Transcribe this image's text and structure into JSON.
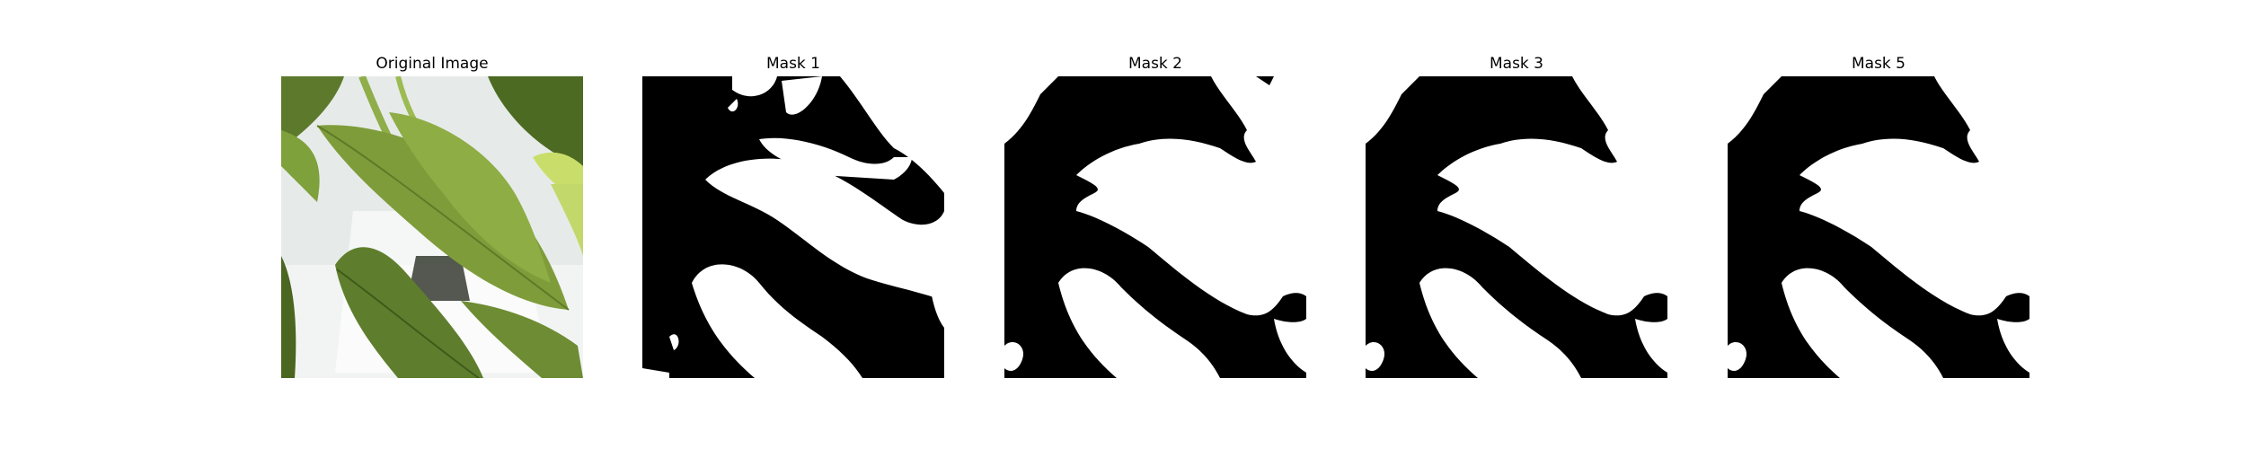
{
  "panels": [
    {
      "title": "Original Image",
      "kind": "photo"
    },
    {
      "title": "Mask 1",
      "kind": "mask"
    },
    {
      "title": "Mask 2",
      "kind": "mask"
    },
    {
      "title": "Mask 3",
      "kind": "mask"
    },
    {
      "title": "Mask 5",
      "kind": "mask"
    }
  ],
  "colors": {
    "background": "#ffffff",
    "mask_foreground": "#ffffff",
    "mask_background": "#000000",
    "leaf_dark": "#4f6a22",
    "leaf_mid": "#7d9b3a",
    "leaf_light": "#a9c25a",
    "photo_background": "#e8ecea"
  }
}
